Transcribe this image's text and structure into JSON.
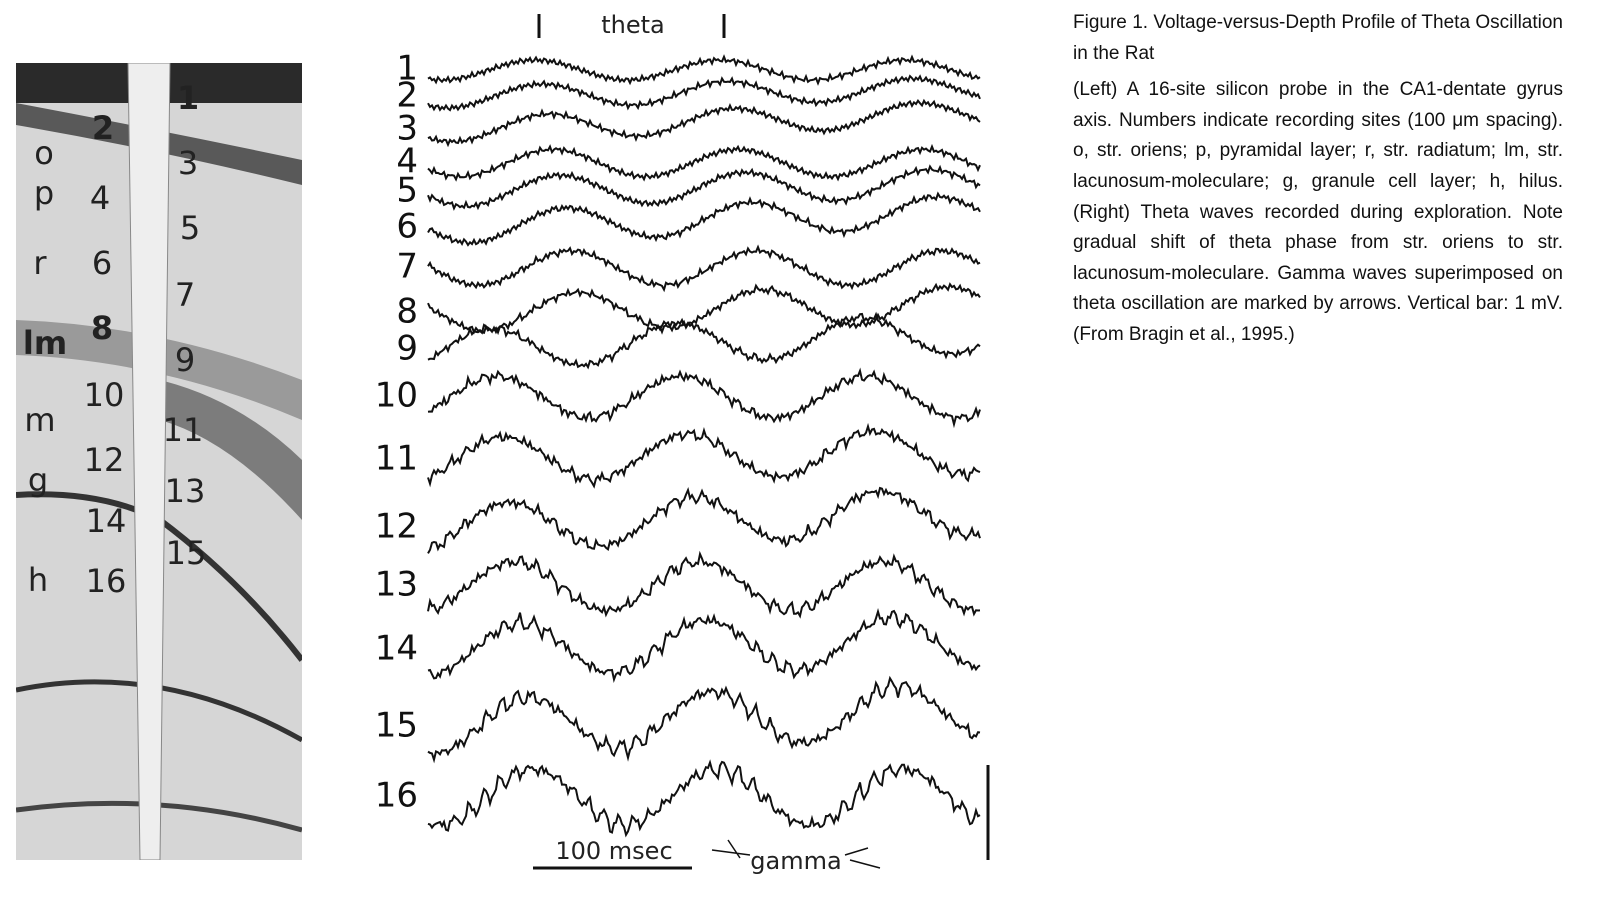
{
  "figure": {
    "probe_panel": {
      "layer_labels": [
        "o",
        "p",
        "r",
        "lm",
        "m",
        "g",
        "h"
      ],
      "site_labels": [
        "1",
        "2",
        "3",
        "4",
        "5",
        "6",
        "7",
        "8",
        "9",
        "10",
        "11",
        "12",
        "13",
        "14",
        "15",
        "16"
      ]
    },
    "traces_panel": {
      "trace_labels": [
        "1",
        "2",
        "3",
        "4",
        "5",
        "6",
        "7",
        "8",
        "9",
        "10",
        "11",
        "12",
        "13",
        "14",
        "15",
        "16"
      ],
      "theta_label": "theta",
      "time_scale_label": "100 msec",
      "gamma_label": "gamma"
    }
  },
  "caption": {
    "title": "Figure 1. Voltage-versus-Depth Profile of Theta Oscillation in the Rat",
    "body": "(Left) A 16-site silicon probe in the CA1-dentate gyrus axis. Numbers indicate recording sites (100 μm spacing). o, str. oriens; p, pyramidal layer; r, str. radiatum; lm, str. lacunosum-moleculare; g, granule cell layer; h, hilus. (Right) Theta waves recorded during exploration. Note gradual shift of theta phase from str. oriens to str. lacunosum-moleculare. Gamma waves superimposed on theta oscillation are marked by arrows. Vertical bar: 1 mV. (From Bragin et al., 1995.)"
  }
}
